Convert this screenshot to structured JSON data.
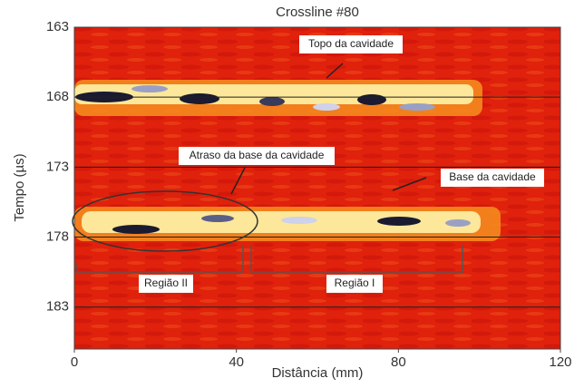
{
  "chart_data": {
    "type": "image",
    "title": "Crossline #80",
    "x_label": "Distância (mm)",
    "y_label": "Tempo (µs)",
    "xlim": [
      0,
      120
    ],
    "xticks": [
      0,
      40,
      80,
      120
    ],
    "ylim": [
      163,
      186
    ],
    "yticks": [
      163,
      168,
      173,
      178,
      183
    ],
    "y_inverted": true,
    "grid": true,
    "annotations": [
      "Topo da cavidade",
      "Atraso da base da cavidade",
      "Base da cavidade",
      "Região II",
      "Região I"
    ]
  }
}
